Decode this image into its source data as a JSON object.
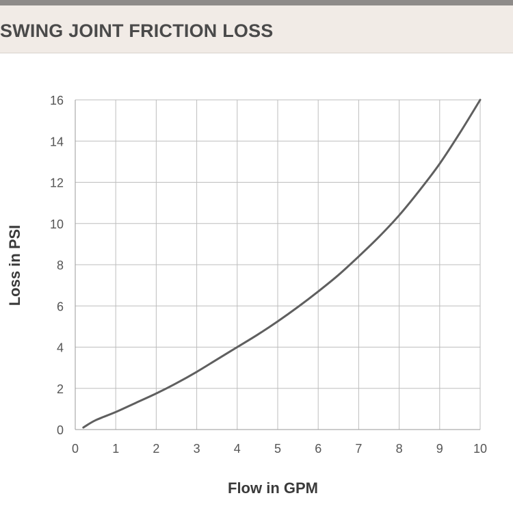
{
  "chart_data": {
    "type": "line",
    "title": "SWING JOINT FRICTION LOSS",
    "xlabel": "Flow in GPM",
    "ylabel": "Loss in PSI",
    "xlim": [
      0,
      10
    ],
    "ylim": [
      0,
      16
    ],
    "xticks": [
      "0",
      "1",
      "2",
      "3",
      "4",
      "5",
      "6",
      "7",
      "8",
      "9",
      "10"
    ],
    "yticks": [
      "0",
      "2",
      "4",
      "6",
      "8",
      "10",
      "12",
      "14",
      "16"
    ],
    "grid": true,
    "series": [
      {
        "color": "#5f5f5f",
        "x": [
          0.2,
          0.5,
          1,
          1.5,
          2,
          2.5,
          3,
          3.5,
          4,
          4.5,
          5,
          5.5,
          6,
          6.5,
          7,
          7.5,
          8,
          8.5,
          9,
          9.5,
          10
        ],
        "y": [
          0.1,
          0.45,
          0.85,
          1.3,
          1.75,
          2.25,
          2.8,
          3.4,
          4.0,
          4.6,
          5.25,
          5.95,
          6.7,
          7.5,
          8.4,
          9.35,
          10.4,
          11.6,
          12.9,
          14.4,
          16.0
        ]
      }
    ]
  }
}
